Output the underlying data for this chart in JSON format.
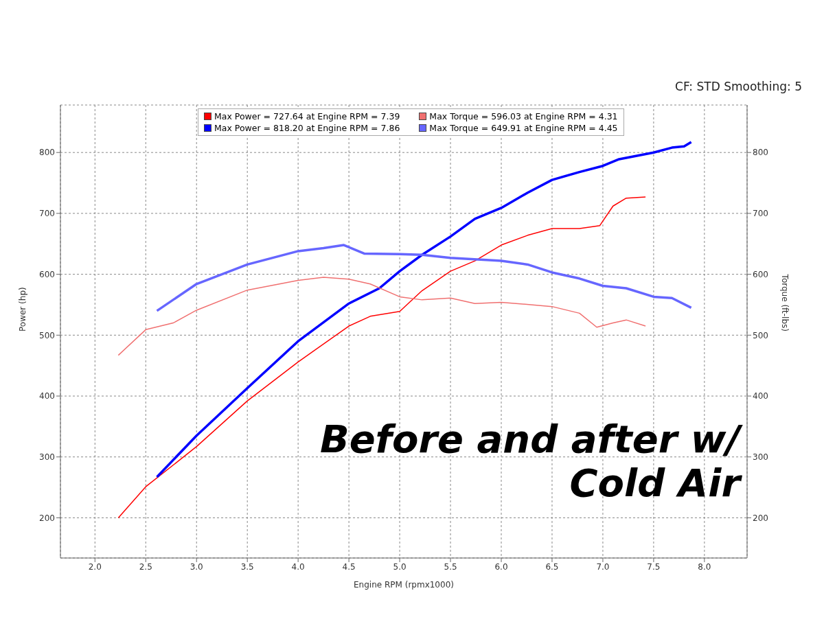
{
  "chart_data": {
    "type": "line",
    "subtitle": "CF: STD Smoothing: 5",
    "xlabel": "Engine RPM (rpmx1000)",
    "ylabel": "Power (hp)",
    "y2label": "Torque (ft-lbs)",
    "annotations": [
      "Before and after w/ Cold Air"
    ],
    "xlim": [
      1.66,
      8.42
    ],
    "xticks": [
      {
        "value": 2,
        "label": "2.0"
      },
      {
        "value": 2.5,
        "label": "2.5"
      },
      {
        "value": 3,
        "label": "3.0"
      },
      {
        "value": 3.5,
        "label": "3.5"
      },
      {
        "value": 4,
        "label": "4.0"
      },
      {
        "value": 4.5,
        "label": "4.5"
      },
      {
        "value": 5,
        "label": "5.0"
      },
      {
        "value": 5.5,
        "label": "5.5"
      },
      {
        "value": 6,
        "label": "6.0"
      },
      {
        "value": 6.5,
        "label": "6.5"
      },
      {
        "value": 7,
        "label": "7.0"
      },
      {
        "value": 7.5,
        "label": "7.5"
      },
      {
        "value": 8,
        "label": "8.0"
      }
    ],
    "ylim": [
      134,
      878
    ],
    "yticks": [
      200,
      300,
      400,
      500,
      600,
      700,
      800
    ],
    "y2lim": [
      134,
      878
    ],
    "y2ticks": [
      200,
      300,
      400,
      500,
      600,
      700,
      800
    ],
    "grid": true,
    "legend": "top",
    "line_style": "solid",
    "marker": "none",
    "series": [
      {
        "name": "Max Power = 727.64 at Engine RPM = 7.39",
        "color": "#ff0000",
        "x": [
          2.23,
          2.5,
          3.0,
          3.5,
          4.0,
          4.5,
          4.71,
          5.0,
          5.22,
          5.5,
          5.74,
          6.0,
          6.26,
          6.5,
          6.77,
          6.97,
          7.1,
          7.23,
          7.42
        ],
        "values": [
          200,
          251,
          317,
          392,
          456,
          515,
          531,
          539,
          573,
          605,
          622,
          648,
          664,
          675,
          675,
          680,
          712,
          725,
          727
        ]
      },
      {
        "name": "Max Power = 818.20 at Engine RPM = 7.86",
        "color": "#0000ff",
        "x": [
          2.61,
          3.0,
          3.5,
          4.0,
          4.5,
          4.8,
          5.0,
          5.22,
          5.5,
          5.74,
          6.0,
          6.26,
          6.5,
          6.77,
          7.0,
          7.16,
          7.5,
          7.68,
          7.8,
          7.87
        ],
        "values": [
          267,
          335,
          413,
          490,
          552,
          577,
          605,
          632,
          662,
          691,
          709,
          734,
          755,
          768,
          778,
          789,
          800,
          808,
          810,
          817
        ]
      },
      {
        "name": "Max Torque = 596.03 at Engine RPM = 4.31",
        "color": "#f07070",
        "x": [
          2.23,
          2.5,
          2.77,
          3.0,
          3.5,
          4.0,
          4.25,
          4.5,
          4.71,
          5.0,
          5.22,
          5.5,
          5.74,
          6.0,
          6.5,
          6.77,
          6.94,
          7.1,
          7.23,
          7.42
        ],
        "values": [
          467,
          509,
          520,
          541,
          574,
          590,
          595,
          592,
          584,
          563,
          558,
          561,
          552,
          554,
          547,
          536,
          513,
          520,
          525,
          515
        ]
      },
      {
        "name": "Max Torque = 649.91 at Engine RPM = 4.45",
        "color": "#6666ff",
        "x": [
          2.61,
          3.0,
          3.5,
          4.0,
          4.25,
          4.45,
          4.65,
          5.0,
          5.22,
          5.5,
          6.0,
          6.26,
          6.5,
          6.77,
          7.0,
          7.23,
          7.5,
          7.68,
          7.87
        ],
        "values": [
          540,
          584,
          616,
          638,
          643,
          648,
          634,
          633,
          632,
          627,
          622,
          616,
          603,
          593,
          581,
          577,
          563,
          561,
          545
        ]
      }
    ]
  }
}
